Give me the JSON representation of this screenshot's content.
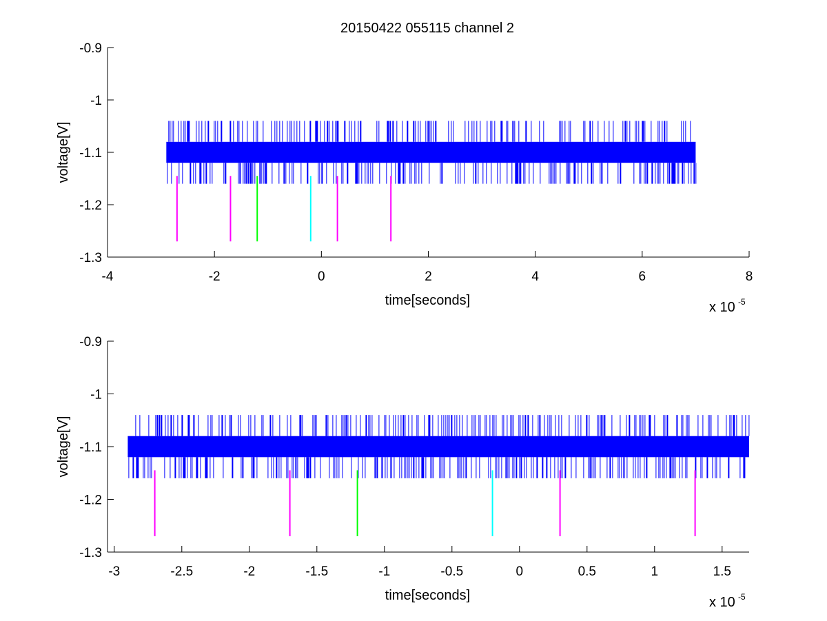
{
  "figure_title": "20150422 055115 channel 2",
  "colors": {
    "signal": "#0000ff",
    "marker_magenta": "#ff00ff",
    "marker_green": "#00ff00",
    "marker_cyan": "#00ffff",
    "axes": "#000000",
    "background": "#ffffff"
  },
  "chart_data": [
    {
      "type": "line",
      "title": "20150422 055115 channel 2",
      "xlabel": "time[seconds]",
      "ylabel": "voltage[V]",
      "x_exponent_base": "x 10",
      "x_exponent_power": "-5",
      "xlim": [
        -4e-05,
        8e-05
      ],
      "ylim": [
        -1.3,
        -0.9
      ],
      "xticks": [
        -4e-05,
        -2e-05,
        0,
        2e-05,
        4e-05,
        6e-05,
        8e-05
      ],
      "xtick_labels": [
        "-4",
        "-2",
        "0",
        "2",
        "4",
        "6",
        "8"
      ],
      "yticks": [
        -1.3,
        -1.2,
        -1.1,
        -1.0,
        -0.9
      ],
      "ytick_labels": [
        "-1.3",
        "-1.2",
        "-1.1",
        "-1",
        "-0.9"
      ],
      "grid": false,
      "series": [
        {
          "x_range": [
            -2.9e-05,
            7e-05
          ],
          "levels": [
            -1.08,
            -1.12
          ],
          "spike_levels": [
            -1.04,
            -1.16
          ],
          "color": "#0000ff"
        }
      ],
      "markers": [
        {
          "x": -2.7e-05,
          "y": [
            -1.27,
            -1.145
          ],
          "color": "#ff00ff"
        },
        {
          "x": -1.7e-05,
          "y": [
            -1.27,
            -1.145
          ],
          "color": "#ff00ff"
        },
        {
          "x": -1.2e-05,
          "y": [
            -1.27,
            -1.145
          ],
          "color": "#00ff00"
        },
        {
          "x": -2e-06,
          "y": [
            -1.27,
            -1.145
          ],
          "color": "#00ffff"
        },
        {
          "x": 3e-06,
          "y": [
            -1.27,
            -1.145
          ],
          "color": "#ff00ff"
        },
        {
          "x": 1.3e-05,
          "y": [
            -1.27,
            -1.145
          ],
          "color": "#ff00ff"
        }
      ]
    },
    {
      "type": "line",
      "title": "",
      "xlabel": "time[seconds]",
      "ylabel": "voltage[V]",
      "x_exponent_base": "x 10",
      "x_exponent_power": "-5",
      "xlim": [
        -3.05e-05,
        1.7e-05
      ],
      "ylim": [
        -1.3,
        -0.9
      ],
      "xticks": [
        -3e-05,
        -2.5e-05,
        -2e-05,
        -1.5e-05,
        -1e-05,
        -5e-06,
        0,
        5e-06,
        1e-05,
        1.5e-05
      ],
      "xtick_labels": [
        "-3",
        "-2.5",
        "-2",
        "-1.5",
        "-1",
        "-0.5",
        "0",
        "0.5",
        "1",
        "1.5"
      ],
      "yticks": [
        -1.3,
        -1.2,
        -1.1,
        -1.0,
        -0.9
      ],
      "ytick_labels": [
        "-1.3",
        "-1.2",
        "-1.1",
        "-1",
        "-0.9"
      ],
      "grid": false,
      "series": [
        {
          "x_range": [
            -2.9e-05,
            1.7e-05
          ],
          "levels": [
            -1.08,
            -1.12
          ],
          "spike_levels": [
            -1.04,
            -1.16
          ],
          "color": "#0000ff"
        }
      ],
      "markers": [
        {
          "x": -2.7e-05,
          "y": [
            -1.27,
            -1.145
          ],
          "color": "#ff00ff"
        },
        {
          "x": -1.7e-05,
          "y": [
            -1.27,
            -1.145
          ],
          "color": "#ff00ff"
        },
        {
          "x": -1.2e-05,
          "y": [
            -1.27,
            -1.145
          ],
          "color": "#00ff00"
        },
        {
          "x": -2e-06,
          "y": [
            -1.27,
            -1.145
          ],
          "color": "#00ffff"
        },
        {
          "x": 3e-06,
          "y": [
            -1.27,
            -1.145
          ],
          "color": "#ff00ff"
        },
        {
          "x": 1.3e-05,
          "y": [
            -1.27,
            -1.145
          ],
          "color": "#ff00ff"
        }
      ]
    }
  ]
}
